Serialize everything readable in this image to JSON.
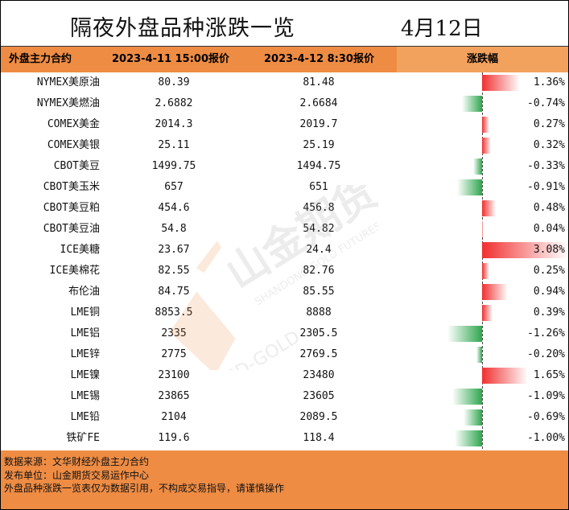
{
  "title": "隔夜外盘品种涨跌一览",
  "date": "4月12日",
  "headers": {
    "name": "外盘主力合约",
    "prev": "2023-4-11 15:00报价",
    "curr": "2023-4-12 8:30报价",
    "change": "涨跌幅"
  },
  "rows": [
    {
      "name": "NYMEX美原油",
      "prev": "80.39",
      "curr": "81.48",
      "pct": "1.36%",
      "value": 1.36
    },
    {
      "name": "NYMEX美燃油",
      "prev": "2.6882",
      "curr": "2.6684",
      "pct": "-0.74%",
      "value": -0.74
    },
    {
      "name": "COMEX美金",
      "prev": "2014.3",
      "curr": "2019.7",
      "pct": "0.27%",
      "value": 0.27
    },
    {
      "name": "COMEX美银",
      "prev": "25.11",
      "curr": "25.19",
      "pct": "0.32%",
      "value": 0.32
    },
    {
      "name": "CBOT美豆",
      "prev": "1499.75",
      "curr": "1494.75",
      "pct": "-0.33%",
      "value": -0.33
    },
    {
      "name": "CBOT美玉米",
      "prev": "657",
      "curr": "651",
      "pct": "-0.91%",
      "value": -0.91
    },
    {
      "name": "CBOT美豆粕",
      "prev": "454.6",
      "curr": "456.8",
      "pct": "0.48%",
      "value": 0.48
    },
    {
      "name": "CBOT美豆油",
      "prev": "54.8",
      "curr": "54.82",
      "pct": "0.04%",
      "value": 0.04
    },
    {
      "name": "ICE美糖",
      "prev": "23.67",
      "curr": "24.4",
      "pct": "3.08%",
      "value": 3.08
    },
    {
      "name": "ICE美棉花",
      "prev": "82.55",
      "curr": "82.76",
      "pct": "0.25%",
      "value": 0.25
    },
    {
      "name": "布伦油",
      "prev": "84.75",
      "curr": "85.55",
      "pct": "0.94%",
      "value": 0.94
    },
    {
      "name": "LME铜",
      "prev": "8853.5",
      "curr": "8888",
      "pct": "0.39%",
      "value": 0.39
    },
    {
      "name": "LME铝",
      "prev": "2335",
      "curr": "2305.5",
      "pct": "-1.26%",
      "value": -1.26
    },
    {
      "name": "LME锌",
      "prev": "2775",
      "curr": "2769.5",
      "pct": "-0.20%",
      "value": -0.2
    },
    {
      "name": "LME镍",
      "prev": "23100",
      "curr": "23480",
      "pct": "1.65%",
      "value": 1.65
    },
    {
      "name": "LME锡",
      "prev": "23865",
      "curr": "23605",
      "pct": "-1.09%",
      "value": -1.09
    },
    {
      "name": "LME铅",
      "prev": "2104",
      "curr": "2089.5",
      "pct": "-0.69%",
      "value": -0.69
    },
    {
      "name": "铁矿FE",
      "prev": "119.6",
      "curr": "118.4",
      "pct": "-1.00%",
      "value": -1.0
    }
  ],
  "footer": {
    "source": "数据来源：文华财经外盘主力合约",
    "publisher": "发布单位：山金期货交易运作中心",
    "disclaimer": "外盘品种涨跌一览表仅为数据引用，不构成交易指导，请谨慎操作"
  },
  "watermark": {
    "brand_cn": "山金期货",
    "brand_en": "SHANDONG GOLD FUTURES",
    "logo_text": "SD-GOLD"
  },
  "colors": {
    "header": "#ee8c44",
    "up": "#f03030",
    "down": "#2fa64e"
  }
}
